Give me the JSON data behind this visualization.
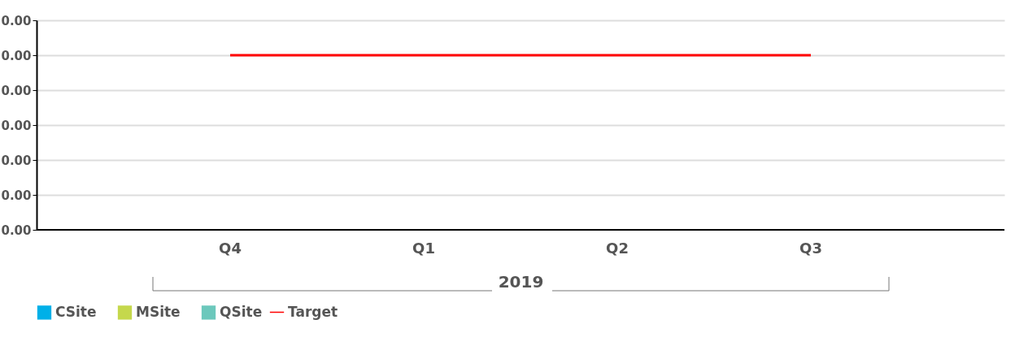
{
  "chart_data": {
    "type": "bar",
    "xlabel": "2019",
    "categories": [
      "Q4",
      "Q1",
      "Q2",
      "Q3"
    ],
    "series": [
      {
        "name": "CSite",
        "color": "#00b0e8",
        "values": [
          0,
          0,
          0,
          0
        ]
      },
      {
        "name": "MSite",
        "color": "#c5d84c",
        "values": [
          0,
          0,
          0,
          0
        ]
      },
      {
        "name": "QSite",
        "color": "#6cc8bc",
        "values": [
          0,
          0,
          0,
          0
        ]
      },
      {
        "name": "Target",
        "type": "line",
        "color": "#ff0000",
        "values": [
          0.0025,
          0.0025,
          0.0025,
          0.0025
        ]
      }
    ],
    "ylim": [
      0,
      0.003
    ],
    "yticks": [
      {
        "value": 0,
        "label": "0.00"
      },
      {
        "value": 0.0005,
        "label": "0.00"
      },
      {
        "value": 0.001,
        "label": "0.00"
      },
      {
        "value": 0.0015,
        "label": "0.00"
      },
      {
        "value": 0.002,
        "label": "0.00"
      },
      {
        "value": 0.0025,
        "label": "0.00"
      },
      {
        "value": 0.003,
        "label": "0.00"
      }
    ],
    "grid": "y",
    "legend": "bottom"
  }
}
